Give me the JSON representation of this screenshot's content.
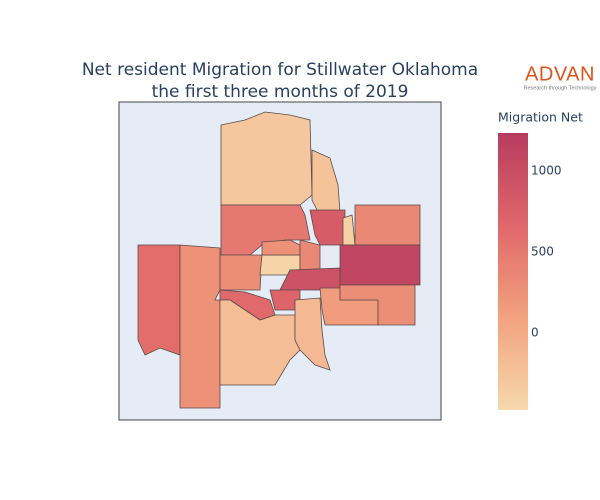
{
  "chart_data": {
    "type": "choropleth",
    "title": "Net resident Migration for Stillwater Oklahoma",
    "subtitle": "the first three months of 2019",
    "values": [
      -300,
      -250,
      500,
      800,
      -400,
      350,
      1100,
      600,
      250,
      300,
      -420,
      250,
      350,
      950,
      650,
      700,
      -200,
      -150,
      150,
      300
    ],
    "map_background": "#e5ecf6",
    "border_color": "#5a4a4a",
    "colorbar": {
      "title": "Migration Net",
      "range": [
        -475,
        1235
      ],
      "ticks": [
        0,
        500,
        1000
      ],
      "colors": [
        "#f7d8ac",
        "#f2a27f",
        "#e0676a",
        "#b73c5f"
      ]
    }
  },
  "logo": {
    "name": "ADVAN",
    "tagline": "Research through Technology"
  }
}
